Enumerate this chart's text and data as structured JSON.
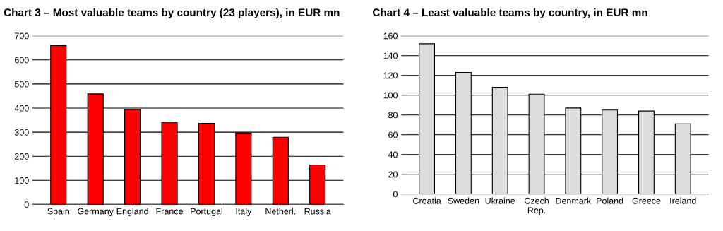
{
  "chart_data": [
    {
      "type": "bar",
      "title": "Chart 3 – Most valuable teams by country (23 players), in EUR mn",
      "categories": [
        "Spain",
        "Germany",
        "England",
        "France",
        "Portugal",
        "Italy",
        "Netherl.",
        "Russia"
      ],
      "values": [
        660,
        459,
        394,
        339,
        337,
        297,
        279,
        164
      ],
      "color": "#ff0000",
      "ylim": [
        0,
        700
      ],
      "yticks": [
        0,
        100,
        200,
        300,
        400,
        500,
        600,
        700
      ],
      "grid": "y"
    },
    {
      "type": "bar",
      "title": "Chart 4 – Least valuable teams by country, in EUR mn",
      "categories": [
        "Croatia",
        "Sweden",
        "Ukraine",
        "Czech\nRep.",
        "Denmark",
        "Poland",
        "Greece",
        "Ireland"
      ],
      "values": [
        152,
        123,
        108,
        101,
        87,
        85,
        84,
        71
      ],
      "color": "#dcdcdc",
      "ylim": [
        0,
        160
      ],
      "yticks": [
        0,
        20,
        40,
        60,
        80,
        100,
        120,
        140,
        160
      ],
      "grid": "y"
    }
  ]
}
